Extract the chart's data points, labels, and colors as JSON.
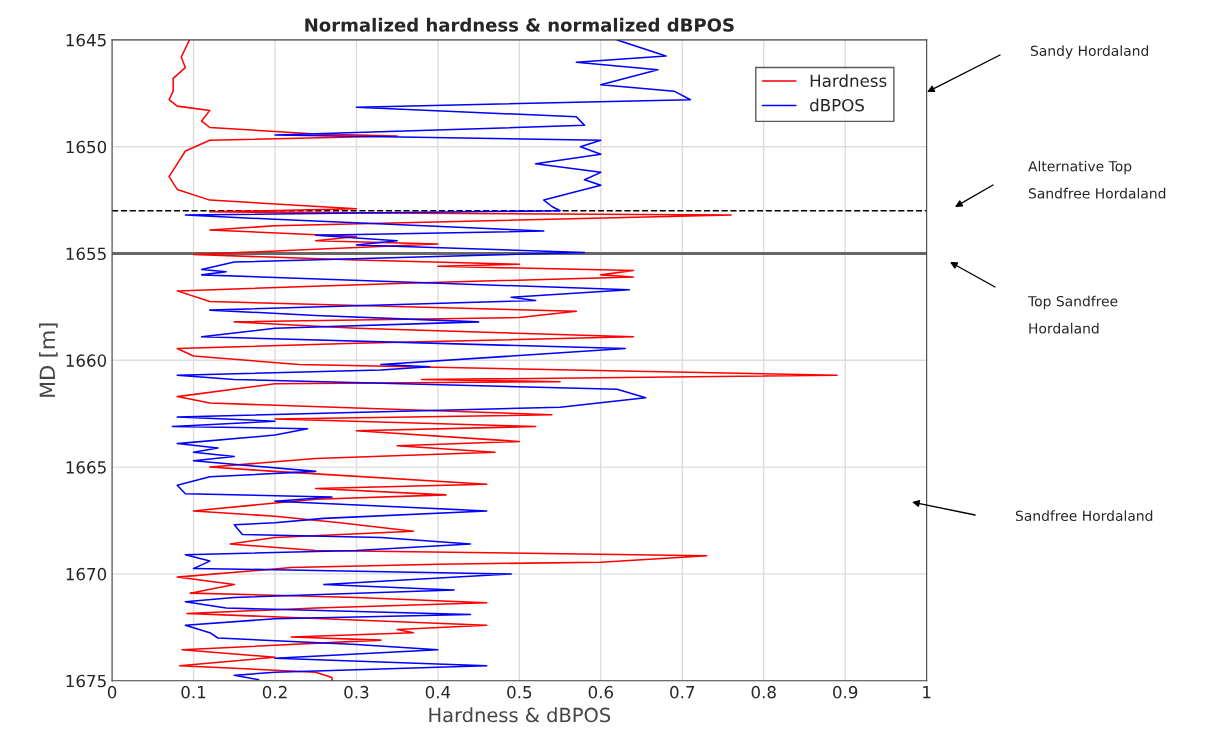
{
  "chart_data": {
    "type": "line",
    "title": "Normalized hardness & normalized dBPOS",
    "xlabel": "Hardness & dBPOS",
    "ylabel": "MD [m]",
    "xlim": [
      0,
      1
    ],
    "xticks": [
      0,
      0.1,
      0.2,
      0.3,
      0.4,
      0.5,
      0.6,
      0.7,
      0.8,
      0.9,
      1
    ],
    "ylim": [
      1675,
      1645
    ],
    "yticks": [
      1645,
      1650,
      1655,
      1660,
      1665,
      1670,
      1675
    ],
    "grid": true,
    "legend": "top right",
    "line_style": "solid",
    "series": [
      {
        "name": "Hardness",
        "color": "#ff0000",
        "x": [
          0.095,
          0.085,
          0.09,
          0.075,
          0.075,
          0.07,
          0.08,
          0.12,
          0.11,
          0.12,
          0.25,
          0.35,
          0.12,
          0.09,
          0.08,
          0.07,
          0.08,
          0.12,
          0.3,
          0.12,
          0.76,
          0.2,
          0.12,
          0.3,
          0.25,
          0.4,
          0.25,
          0.1,
          0.3,
          0.5,
          0.4,
          0.64,
          0.6,
          0.64,
          0.35,
          0.08,
          0.12,
          0.57,
          0.5,
          0.15,
          0.3,
          0.64,
          0.3,
          0.08,
          0.1,
          0.23,
          0.89,
          0.38,
          0.55,
          0.2,
          0.08,
          0.12,
          0.54,
          0.2,
          0.52,
          0.3,
          0.5,
          0.35,
          0.47,
          0.25,
          0.12,
          0.2,
          0.46,
          0.25,
          0.41,
          0.25,
          0.1,
          0.2,
          0.28,
          0.37,
          0.2,
          0.145,
          0.25,
          0.73,
          0.6,
          0.4,
          0.22,
          0.08,
          0.15,
          0.096,
          0.3,
          0.46,
          0.25,
          0.092,
          0.46,
          0.35,
          0.37,
          0.22,
          0.33,
          0.086,
          0.2,
          0.083,
          0.25,
          0.27,
          0.27
        ],
        "values": [
          1645.0,
          1645.8,
          1646.3,
          1646.8,
          1647.4,
          1647.8,
          1648.1,
          1648.3,
          1648.8,
          1649.1,
          1649.4,
          1649.5,
          1649.7,
          1650.2,
          1650.8,
          1651.4,
          1652.0,
          1652.5,
          1652.9,
          1653.05,
          1653.2,
          1653.7,
          1653.9,
          1654.2,
          1654.4,
          1654.55,
          1654.8,
          1655.05,
          1655.3,
          1655.5,
          1655.6,
          1655.8,
          1656.0,
          1656.1,
          1656.4,
          1656.75,
          1657.25,
          1657.7,
          1658.0,
          1658.2,
          1658.5,
          1658.9,
          1659.2,
          1659.45,
          1659.8,
          1660.2,
          1660.7,
          1660.9,
          1661.0,
          1661.1,
          1661.7,
          1662.0,
          1662.55,
          1662.75,
          1663.1,
          1663.3,
          1663.8,
          1664.0,
          1664.3,
          1664.6,
          1665.0,
          1665.2,
          1665.8,
          1666.0,
          1666.3,
          1666.5,
          1667.05,
          1667.3,
          1667.6,
          1668.0,
          1668.3,
          1668.6,
          1668.9,
          1669.15,
          1669.45,
          1669.55,
          1669.7,
          1670.15,
          1670.5,
          1670.9,
          1671.1,
          1671.35,
          1671.6,
          1671.85,
          1672.4,
          1672.6,
          1672.75,
          1672.95,
          1673.1,
          1673.55,
          1673.9,
          1674.3,
          1674.6,
          1674.85,
          1675.0
        ]
      },
      {
        "name": "dBPOS",
        "color": "#0000ff",
        "x": [
          0.62,
          0.68,
          0.57,
          0.67,
          0.6,
          0.69,
          0.71,
          0.3,
          0.57,
          0.58,
          0.2,
          0.6,
          0.575,
          0.6,
          0.52,
          0.6,
          0.58,
          0.6,
          0.53,
          0.54,
          0.55,
          0.09,
          0.2,
          0.53,
          0.25,
          0.35,
          0.3,
          0.58,
          0.15,
          0.11,
          0.14,
          0.11,
          0.635,
          0.49,
          0.52,
          0.12,
          0.25,
          0.45,
          0.2,
          0.11,
          0.63,
          0.33,
          0.39,
          0.33,
          0.08,
          0.15,
          0.62,
          0.655,
          0.55,
          0.08,
          0.2,
          0.074,
          0.24,
          0.2,
          0.08,
          0.13,
          0.1,
          0.15,
          0.1,
          0.25,
          0.12,
          0.08,
          0.09,
          0.27,
          0.2,
          0.46,
          0.26,
          0.2,
          0.15,
          0.16,
          0.33,
          0.44,
          0.3,
          0.09,
          0.12,
          0.1,
          0.2,
          0.49,
          0.26,
          0.42,
          0.15,
          0.09,
          0.14,
          0.44,
          0.2,
          0.09,
          0.12,
          0.13,
          0.3,
          0.4,
          0.2,
          0.46,
          0.2,
          0.15,
          0.18
        ],
        "values": [
          1645.0,
          1645.75,
          1646.05,
          1646.4,
          1647.1,
          1647.4,
          1647.8,
          1648.15,
          1648.6,
          1649.0,
          1649.45,
          1649.7,
          1650.0,
          1650.35,
          1650.8,
          1651.2,
          1651.55,
          1651.8,
          1652.5,
          1652.8,
          1653.0,
          1653.2,
          1653.4,
          1653.95,
          1654.15,
          1654.4,
          1654.6,
          1654.95,
          1655.4,
          1655.75,
          1655.85,
          1656.0,
          1656.7,
          1657.05,
          1657.2,
          1657.65,
          1657.9,
          1658.2,
          1658.5,
          1658.9,
          1659.45,
          1660.2,
          1660.3,
          1660.45,
          1660.7,
          1660.9,
          1661.35,
          1661.75,
          1662.2,
          1662.65,
          1662.85,
          1663.1,
          1663.2,
          1663.5,
          1663.9,
          1664.1,
          1664.3,
          1664.5,
          1664.7,
          1665.2,
          1665.45,
          1665.85,
          1666.25,
          1666.4,
          1666.6,
          1667.05,
          1667.4,
          1667.6,
          1667.7,
          1668.15,
          1668.3,
          1668.6,
          1668.9,
          1669.1,
          1669.4,
          1669.75,
          1669.8,
          1670.0,
          1670.5,
          1670.75,
          1671.1,
          1671.3,
          1671.6,
          1671.9,
          1672.1,
          1672.4,
          1672.75,
          1673.0,
          1673.3,
          1673.55,
          1673.95,
          1674.3,
          1674.6,
          1674.75,
          1674.95
        ]
      }
    ],
    "ref_lines": [
      {
        "axis": "y",
        "value": 1653,
        "color": "#000000",
        "line_style": "dashed"
      },
      {
        "axis": "y",
        "value": 1655,
        "color": "#666666",
        "line_style": "solid"
      }
    ],
    "annotations": [
      "Sandy Hordaland",
      "Alternative Top\nSandfree Hordaland",
      "Top Sandfree\nHordaland",
      "Sandfree Hordaland"
    ]
  }
}
